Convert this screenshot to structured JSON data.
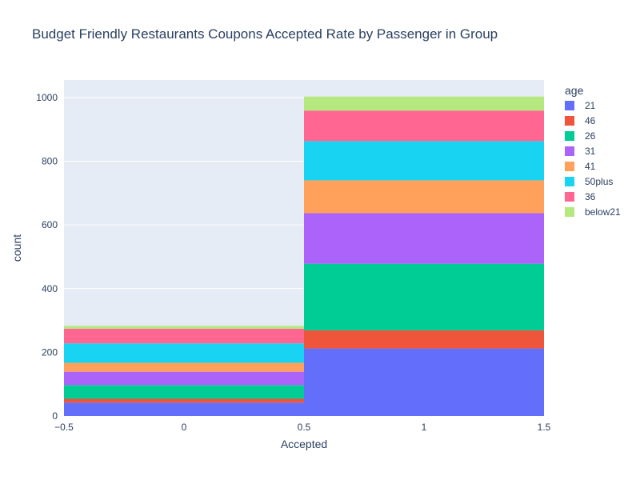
{
  "chart_data": {
    "type": "bar",
    "title": "Budget Friendly Restaurants Coupons Accepted Rate by Passenger in Group",
    "xlabel": "Accepted",
    "ylabel": "count",
    "xlim": [
      -0.5,
      1.5
    ],
    "ylim": [
      0,
      1055
    ],
    "x_ticks": [
      "−0.5",
      "0",
      "0.5",
      "1",
      "1.5"
    ],
    "y_ticks": [
      0,
      200,
      400,
      600,
      800,
      1000
    ],
    "categories": [
      0,
      1
    ],
    "bar_width": 1,
    "barmode": "stack",
    "grid": true,
    "legend": {
      "title": "age",
      "position": "right"
    },
    "series": [
      {
        "name": "21",
        "color": "#636efa",
        "values": [
          42,
          212
        ]
      },
      {
        "name": "46",
        "color": "#EF553B",
        "values": [
          12,
          57
        ]
      },
      {
        "name": "26",
        "color": "#00cc96",
        "values": [
          43,
          209
        ]
      },
      {
        "name": "31",
        "color": "#ab63fa",
        "values": [
          42,
          159
        ]
      },
      {
        "name": "41",
        "color": "#FFA15A",
        "values": [
          28,
          103
        ]
      },
      {
        "name": "50plus",
        "color": "#19d3f3",
        "values": [
          61,
          123
        ]
      },
      {
        "name": "36",
        "color": "#FF6692",
        "values": [
          46,
          96
        ]
      },
      {
        "name": "below21",
        "color": "#B6E880",
        "values": [
          9,
          44
        ]
      }
    ]
  }
}
